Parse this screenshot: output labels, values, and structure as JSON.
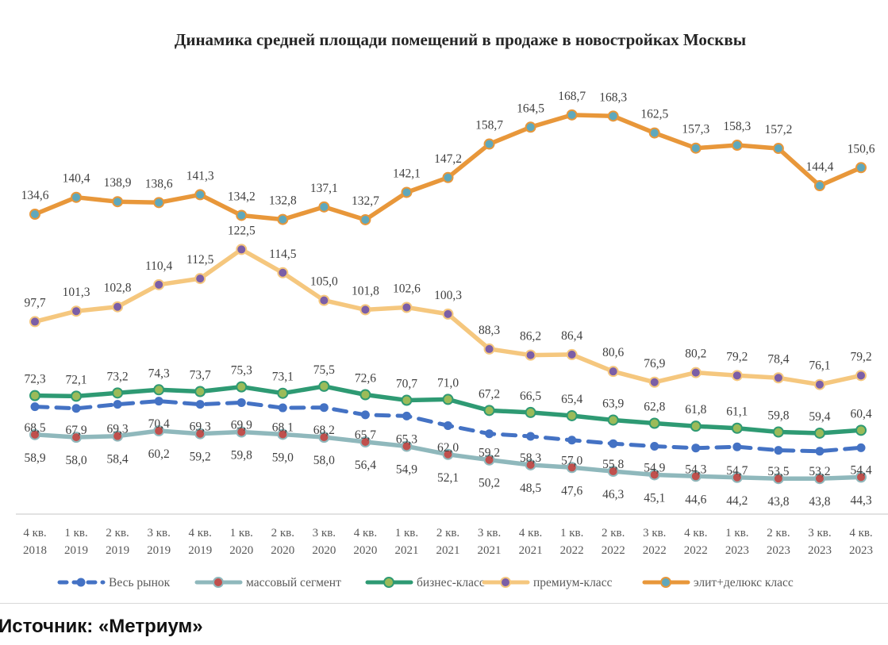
{
  "chart_data": {
    "type": "line",
    "title": "Динамика средней площади помещений в продаже в новостройках Москвы",
    "xlabel": "",
    "ylabel": "",
    "grid": false,
    "legend_position": "bottom",
    "categories": [
      "4 кв. 2018",
      "1 кв. 2019",
      "2 кв. 2019",
      "3 кв. 2019",
      "4 кв. 2019",
      "1 кв. 2020",
      "2 кв. 2020",
      "3 кв. 2020",
      "4 кв. 2020",
      "1 кв. 2021",
      "2 кв. 2021",
      "3 кв. 2021",
      "4 кв. 2021",
      "1 кв. 2022",
      "2 кв. 2022",
      "3 кв. 2022",
      "4 кв. 2022",
      "1 кв. 2023",
      "2 кв. 2023",
      "3 кв. 2023",
      "4 кв. 2023"
    ],
    "category_lines": [
      [
        "4 кв.",
        "2018"
      ],
      [
        "1 кв.",
        "2019"
      ],
      [
        "2 кв.",
        "2019"
      ],
      [
        "3 кв.",
        "2019"
      ],
      [
        "4 кв.",
        "2019"
      ],
      [
        "1 кв.",
        "2020"
      ],
      [
        "2 кв.",
        "2020"
      ],
      [
        "3 кв.",
        "2020"
      ],
      [
        "4 кв.",
        "2020"
      ],
      [
        "1 кв.",
        "2021"
      ],
      [
        "2 кв.",
        "2021"
      ],
      [
        "3 кв.",
        "2021"
      ],
      [
        "4 кв.",
        "2021"
      ],
      [
        "1 кв.",
        "2022"
      ],
      [
        "2 кв.",
        "2022"
      ],
      [
        "3 кв.",
        "2022"
      ],
      [
        "4 кв.",
        "2022"
      ],
      [
        "1 кв.",
        "2023"
      ],
      [
        "2 кв.",
        "2023"
      ],
      [
        "3 кв.",
        "2023"
      ],
      [
        "4 кв.",
        "2023"
      ]
    ],
    "series": [
      {
        "name": "Весь рынок",
        "style": "dashed",
        "line_color": "#4472c4",
        "marker_color": "#4472c4",
        "label_position": "below",
        "values": [
          68.5,
          67.9,
          69.3,
          70.4,
          69.3,
          69.9,
          68.1,
          68.2,
          65.7,
          65.3,
          62.0,
          59.2,
          58.3,
          57.0,
          55.8,
          54.9,
          54.3,
          54.7,
          53.5,
          53.2,
          54.4
        ],
        "labels": [
          "68,5",
          "67,9",
          "69,3",
          "70,4",
          "69,3",
          "69,9",
          "68,1",
          "68,2",
          "65,7",
          "65,3",
          "62,0",
          "59,2",
          "58,3",
          "57,0",
          "55,8",
          "54,9",
          "54,3",
          "54,7",
          "53,5",
          "53,2",
          "54,4"
        ]
      },
      {
        "name": "массовый сегмент",
        "style": "solid",
        "line_color": "#8fb8bc",
        "marker_color": "#c0504d",
        "label_position": "below",
        "values": [
          58.9,
          58.0,
          58.4,
          60.2,
          59.2,
          59.8,
          59.0,
          58.0,
          56.4,
          54.9,
          52.1,
          50.2,
          48.5,
          47.6,
          46.3,
          45.1,
          44.6,
          44.2,
          43.8,
          43.8,
          44.3
        ],
        "labels": [
          "58,9",
          "58,0",
          "58,4",
          "60,2",
          "59,2",
          "59,8",
          "59,0",
          "58,0",
          "56,4",
          "54,9",
          "52,1",
          "50,2",
          "48,5",
          "47,6",
          "46,3",
          "45,1",
          "44,6",
          "44,2",
          "43,8",
          "43,8",
          "44,3"
        ]
      },
      {
        "name": "бизнес-класс",
        "style": "solid",
        "line_color": "#2e9a73",
        "marker_color": "#9bbb59",
        "label_position": "above",
        "values": [
          72.3,
          72.1,
          73.2,
          74.3,
          73.7,
          75.3,
          73.1,
          75.5,
          72.6,
          70.7,
          71.0,
          67.2,
          66.5,
          65.4,
          63.9,
          62.8,
          61.8,
          61.1,
          59.8,
          59.4,
          60.4
        ],
        "labels": [
          "72,3",
          "72,1",
          "73,2",
          "74,3",
          "73,7",
          "75,3",
          "73,1",
          "75,5",
          "72,6",
          "70,7",
          "71,0",
          "67,2",
          "66,5",
          "65,4",
          "63,9",
          "62,8",
          "61,8",
          "61,1",
          "59,8",
          "59,4",
          "60,4"
        ]
      },
      {
        "name": "премиум-класс",
        "style": "solid",
        "line_color": "#f5c77e",
        "marker_color": "#7b5ea7",
        "label_position": "above",
        "values": [
          97.7,
          101.3,
          102.8,
          110.4,
          112.5,
          122.5,
          114.5,
          105.0,
          101.8,
          102.6,
          100.3,
          88.3,
          86.2,
          86.4,
          80.6,
          76.9,
          80.2,
          79.2,
          78.4,
          76.1,
          79.2
        ],
        "labels": [
          "97,7",
          "101,3",
          "102,8",
          "110,4",
          "112,5",
          "122,5",
          "114,5",
          "105,0",
          "101,8",
          "102,6",
          "100,3",
          "88,3",
          "86,2",
          "86,4",
          "80,6",
          "76,9",
          "80,2",
          "79,2",
          "78,4",
          "76,1",
          "79,2"
        ]
      },
      {
        "name": "элит+делюкс класс",
        "style": "solid",
        "line_color": "#e8973a",
        "marker_color": "#5fa8bc",
        "label_position": "above",
        "values": [
          134.6,
          140.4,
          138.9,
          138.6,
          141.3,
          134.2,
          132.8,
          137.1,
          132.7,
          142.1,
          147.2,
          158.7,
          164.5,
          168.7,
          168.3,
          162.5,
          157.3,
          158.3,
          157.2,
          144.4,
          150.6
        ],
        "labels": [
          "134,6",
          "140,4",
          "138,9",
          "138,6",
          "141,3",
          "134,2",
          "132,8",
          "137,1",
          "132,7",
          "142,1",
          "147,2",
          "158,7",
          "164,5",
          "168,7",
          "168,3",
          "162,5",
          "157,3",
          "158,3",
          "157,2",
          "144,4",
          "150,6"
        ]
      }
    ]
  },
  "footer": {
    "source": "Источник: «Метриум»"
  }
}
